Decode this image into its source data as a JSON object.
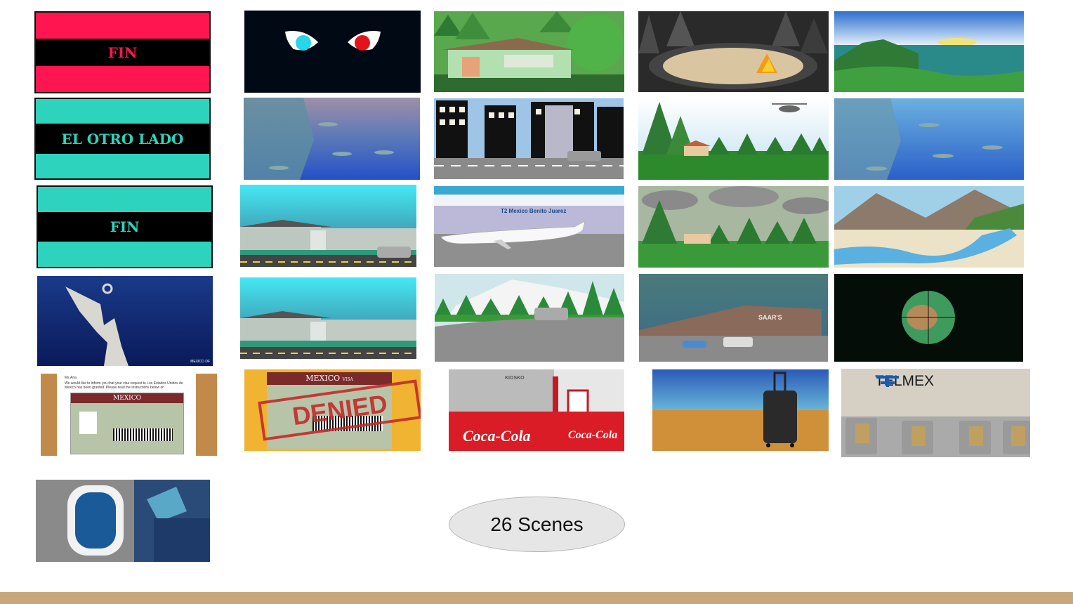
{
  "scenes": {
    "fin_red": {
      "title": "FIN"
    },
    "el_otro_lado": {
      "title": "EL OTRO LADO"
    },
    "fin_teal": {
      "title": "FIN"
    },
    "airport": {
      "sign": "T2 Mexico Benito Juarez"
    },
    "store": {
      "sign": "SAAR'S"
    },
    "angel": {
      "caption": "MEXICO DF"
    },
    "visa_letter": {
      "greeting": "Ms.Ana",
      "body": "We would like to inform you that your visa request to Los Estados Unidos de Mexico has been granted. Please read the instructions below on",
      "visa_label": "MEXICO"
    },
    "visa_denied": {
      "visa_label": "MEXICO",
      "visa_suffix": "VISA",
      "stamp": "DENIED"
    },
    "kiosk": {
      "sign": "KIOSKO",
      "brand": "Coca-Cola"
    },
    "telmex": {
      "brand": "TELMEX"
    }
  },
  "footer": {
    "scene_count": "26 Scenes"
  },
  "colors": {
    "red_band": "#ff1650",
    "teal_band": "#2ed3bd",
    "footer_bar": "#c9a77c"
  }
}
